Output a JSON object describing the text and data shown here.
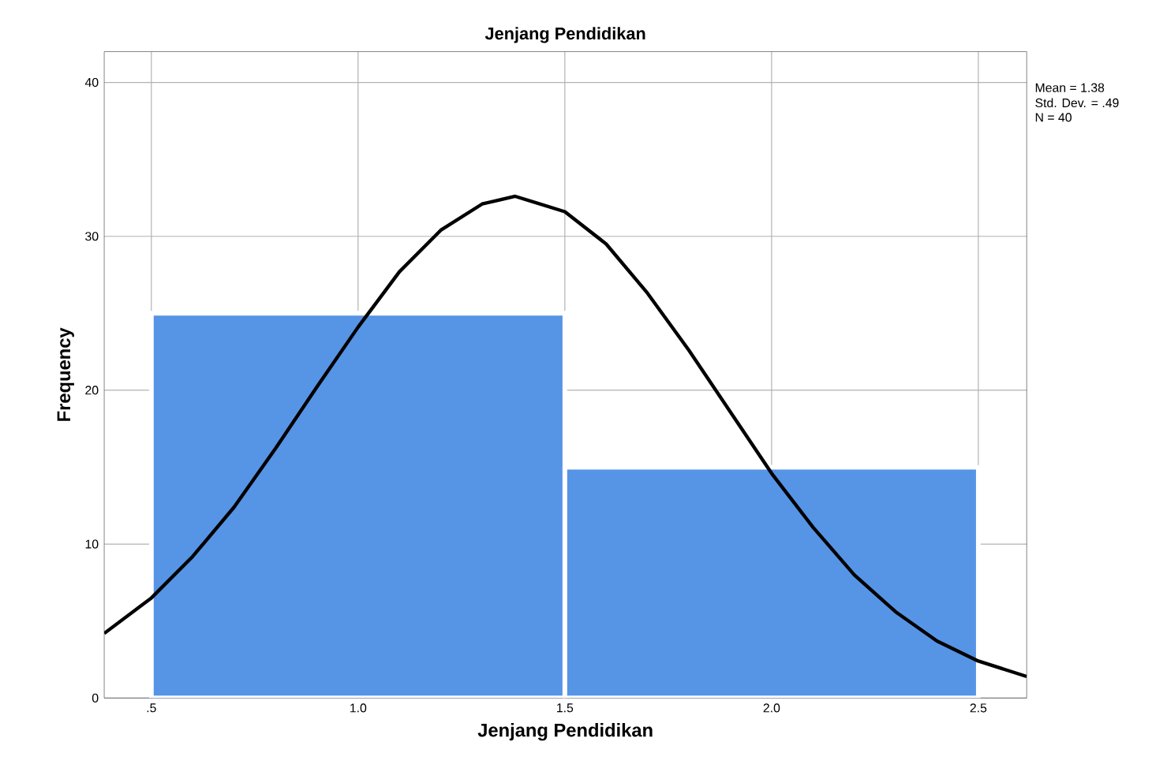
{
  "chart_data": {
    "type": "histogram",
    "title": "Jenjang Pendidikan",
    "xlabel": "Jenjang Pendidikan",
    "ylabel": "Frequency",
    "bins": [
      0.5,
      1.5,
      2.5
    ],
    "values": [
      25,
      15
    ],
    "color": "#5694e6",
    "series": [
      {
        "type": "line",
        "color": "#000000",
        "x": [
          0.386,
          0.5,
          0.6,
          0.7,
          0.8,
          0.9,
          1.0,
          1.1,
          1.2,
          1.3,
          1.38,
          1.5,
          1.6,
          1.7,
          1.8,
          1.9,
          2.0,
          2.1,
          2.2,
          2.3,
          2.4,
          2.5,
          2.617
        ],
        "values": [
          4.2,
          6.5,
          9.2,
          12.4,
          16.2,
          20.2,
          24.1,
          27.7,
          30.4,
          32.1,
          32.6,
          31.6,
          29.5,
          26.3,
          22.6,
          18.6,
          14.6,
          11.1,
          8.0,
          5.6,
          3.7,
          2.4,
          1.4
        ]
      }
    ],
    "xlim": [
      0.386,
      2.617
    ],
    "ylim": [
      0,
      42
    ],
    "xticks": [
      {
        "value": 0.5,
        "label": ".5"
      },
      {
        "value": 1.0,
        "label": "1.0"
      },
      {
        "value": 1.5,
        "label": "1.5"
      },
      {
        "value": 2.0,
        "label": "2.0"
      },
      {
        "value": 2.5,
        "label": "2.5"
      }
    ],
    "yticks": [
      0,
      10,
      20,
      30,
      40
    ],
    "grid": true,
    "annotations": [
      "Mean = 1.38",
      "Std. Dev. = .49",
      "N = 40"
    ]
  }
}
